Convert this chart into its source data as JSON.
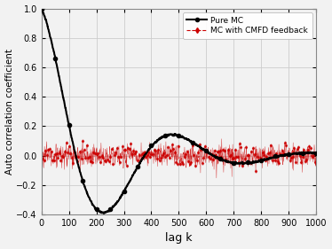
{
  "title": "",
  "xlabel": "lag k",
  "ylabel": "Auto correlation coefficient",
  "xlim": [
    0,
    1000
  ],
  "ylim": [
    -0.4,
    1.0
  ],
  "xticks": [
    0,
    100,
    200,
    300,
    400,
    500,
    600,
    700,
    800,
    900,
    1000
  ],
  "yticks": [
    -0.4,
    -0.2,
    0,
    0.2,
    0.4,
    0.6,
    0.8,
    1.0
  ],
  "legend": [
    "Pure MC",
    "MC with CMFD feedback"
  ],
  "black_color": "#000000",
  "red_color": "#cc0000",
  "background_color": "#f2f2f2",
  "n_points": 1001,
  "pure_mc_decay": 0.004,
  "pure_mc_freq": 0.00628,
  "pure_mc_initial_decay": 0.035,
  "cmfd_noise_amp": 0.04,
  "mc_marker_step": 50,
  "cmfd_marker_step": 5
}
